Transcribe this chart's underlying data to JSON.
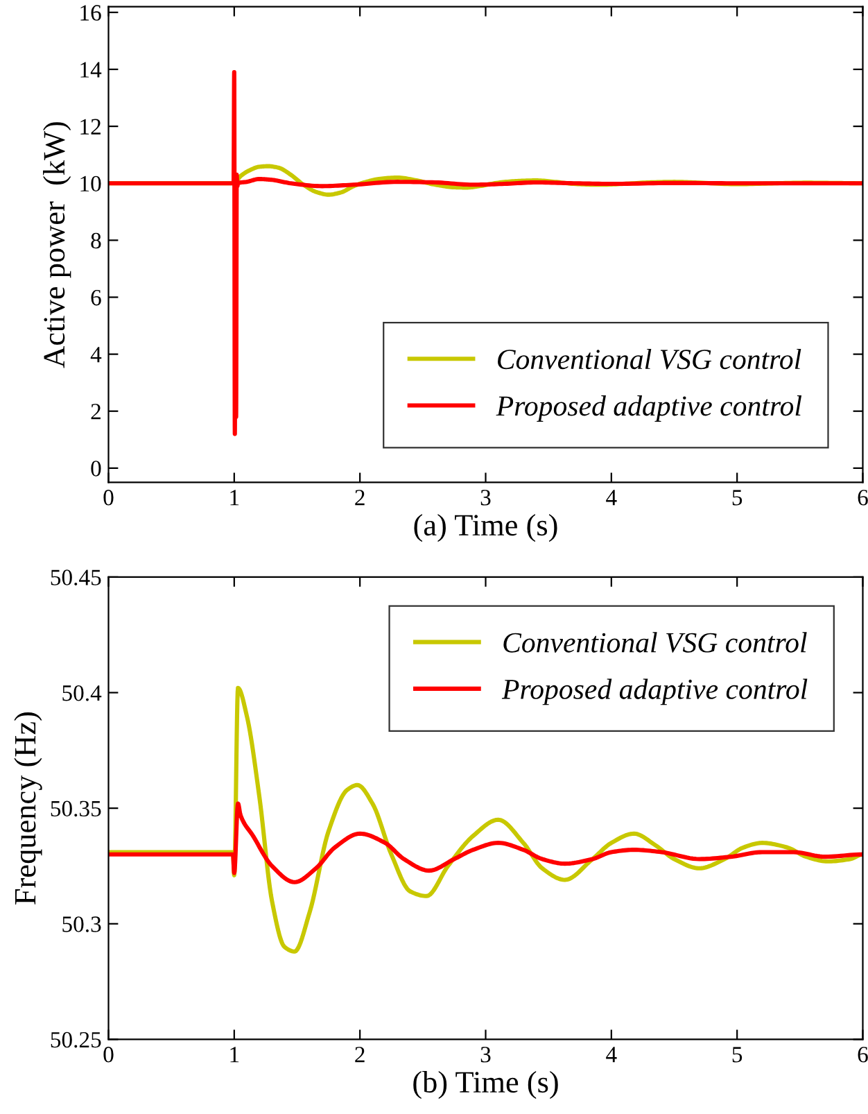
{
  "chart_data": [
    {
      "type": "line",
      "xlabel": "(a) Time (s)",
      "ylabel": "Active power  (kW)",
      "xlim": [
        0,
        6
      ],
      "ylim": [
        -0.5,
        16.2
      ],
      "xticks": [
        0,
        1,
        2,
        3,
        4,
        5,
        6
      ],
      "yticks": [
        0,
        2,
        4,
        6,
        8,
        10,
        12,
        14,
        16
      ],
      "legend": "bottom right",
      "grid": false,
      "series": [
        {
          "name": "Conventional VSG control",
          "color": "#c8c800",
          "x": [
            0,
            1.0,
            1.05,
            1.12,
            1.2,
            1.27,
            1.35,
            1.45,
            1.55,
            1.65,
            1.75,
            1.85,
            1.95,
            2.05,
            2.15,
            2.3,
            2.45,
            2.6,
            2.75,
            2.85,
            2.95,
            3.1,
            3.25,
            3.4,
            3.55,
            3.7,
            3.9,
            4.1,
            4.3,
            4.5,
            4.7,
            5.0,
            5.3,
            5.55,
            5.8,
            6.0
          ],
          "values": [
            10,
            10,
            10.25,
            10.45,
            10.58,
            10.6,
            10.55,
            10.3,
            9.95,
            9.7,
            9.6,
            9.68,
            9.9,
            10.05,
            10.15,
            10.2,
            10.1,
            9.95,
            9.86,
            9.85,
            9.9,
            10.02,
            10.08,
            10.1,
            10.05,
            9.98,
            9.95,
            9.98,
            10.03,
            10.05,
            10.02,
            9.97,
            10.0,
            10.02,
            10.01,
            10.0
          ]
        },
        {
          "name": "Proposed adaptive control",
          "color": "#ff0000",
          "x": [
            0,
            0.995,
            1.0,
            1.005,
            1.01,
            1.015,
            1.02,
            1.025,
            1.03,
            1.1,
            1.2,
            1.3,
            1.45,
            1.7,
            1.95,
            2.3,
            2.6,
            2.9,
            3.15,
            3.4,
            3.7,
            4.0,
            4.5,
            5.0,
            5.5,
            6.0
          ],
          "values": [
            10,
            10,
            13.9,
            1.2,
            10.2,
            1.8,
            10.3,
            9.9,
            10.0,
            10.05,
            10.15,
            10.12,
            10.0,
            9.9,
            9.95,
            10.05,
            10.03,
            9.95,
            9.98,
            10.03,
            10.0,
            9.98,
            10.01,
            10.0,
            10.0,
            10.0
          ]
        }
      ]
    },
    {
      "type": "line",
      "xlabel": "(b) Time (s)",
      "ylabel": "Frequency (Hz)",
      "xlim": [
        0,
        6
      ],
      "ylim": [
        50.25,
        50.45
      ],
      "xticks": [
        0,
        1,
        2,
        3,
        4,
        5,
        6
      ],
      "yticks": [
        50.25,
        50.3,
        50.35,
        50.4,
        50.45
      ],
      "legend": "top right",
      "grid": false,
      "series": [
        {
          "name": "Conventional VSG control",
          "color": "#c8c800",
          "x": [
            0,
            0.99,
            1.0,
            1.03,
            1.1,
            1.2,
            1.3,
            1.4,
            1.48,
            1.6,
            1.75,
            1.9,
            1.98,
            2.1,
            2.25,
            2.4,
            2.53,
            2.7,
            2.9,
            3.1,
            3.3,
            3.45,
            3.63,
            3.85,
            4.0,
            4.18,
            4.35,
            4.5,
            4.7,
            4.9,
            5.05,
            5.2,
            5.4,
            5.55,
            5.72,
            5.9,
            6.0
          ],
          "values": [
            50.331,
            50.331,
            50.321,
            50.402,
            50.39,
            50.355,
            50.31,
            50.29,
            50.288,
            50.305,
            50.34,
            50.358,
            50.36,
            50.352,
            50.33,
            50.314,
            50.312,
            50.325,
            50.338,
            50.345,
            50.335,
            50.324,
            50.319,
            50.328,
            50.335,
            50.339,
            50.334,
            50.328,
            50.324,
            50.328,
            50.333,
            50.335,
            50.333,
            50.329,
            50.327,
            50.328,
            50.33
          ]
        },
        {
          "name": "Proposed adaptive control",
          "color": "#ff0000",
          "x": [
            0,
            0.99,
            1.0,
            1.03,
            1.05,
            1.15,
            1.3,
            1.48,
            1.65,
            1.8,
            2.0,
            2.2,
            2.35,
            2.55,
            2.75,
            2.9,
            3.1,
            3.3,
            3.45,
            3.63,
            3.85,
            4.0,
            4.18,
            4.4,
            4.7,
            4.95,
            5.2,
            5.45,
            5.7,
            6.0
          ],
          "values": [
            50.33,
            50.33,
            50.322,
            50.352,
            50.347,
            50.338,
            50.325,
            50.318,
            50.324,
            50.333,
            50.339,
            50.335,
            50.328,
            50.323,
            50.328,
            50.332,
            50.335,
            50.332,
            50.328,
            50.326,
            50.328,
            50.331,
            50.332,
            50.331,
            50.328,
            50.329,
            50.331,
            50.331,
            50.329,
            50.33
          ]
        }
      ]
    }
  ]
}
